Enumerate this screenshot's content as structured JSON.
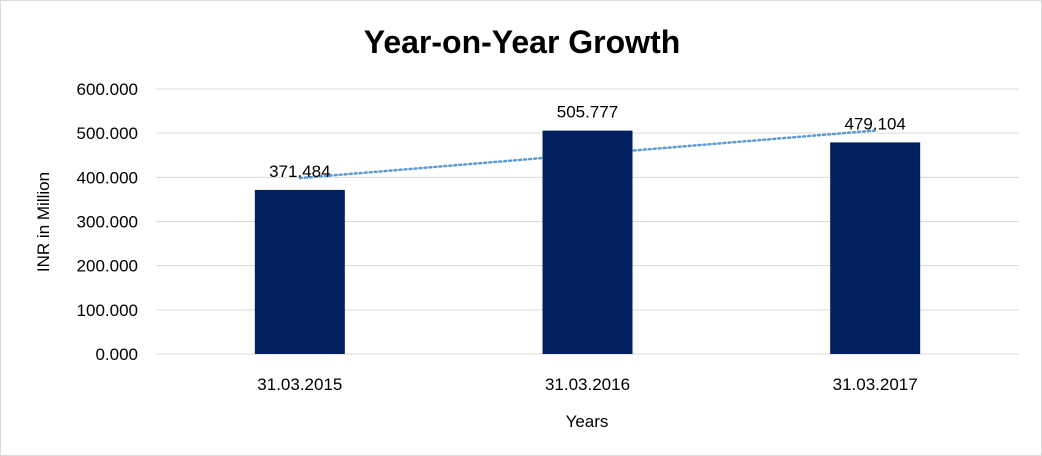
{
  "chart_data": {
    "type": "bar",
    "title": "Year-on-Year Growth",
    "xlabel": "Years",
    "ylabel": "INR in Million",
    "categories": [
      "31.03.2015",
      "31.03.2016",
      "31.03.2017"
    ],
    "values": [
      371.484,
      505.777,
      479.104
    ],
    "value_labels": [
      "371.484",
      "505.777",
      "479.104"
    ],
    "ylim": [
      0,
      600
    ],
    "yticks": [
      0,
      100,
      200,
      300,
      400,
      500,
      600
    ],
    "ytick_labels": [
      "0.000",
      "100.000",
      "200.000",
      "300.000",
      "400.000",
      "500.000",
      "600.000"
    ],
    "grid": true,
    "legend": "none",
    "trendline": {
      "type": "linear",
      "style": "dotted",
      "color": "#5b9bd5"
    },
    "colors": {
      "bar": "#002060",
      "grid": "#d9d9d9",
      "trendline": "#5b9bd5"
    }
  }
}
